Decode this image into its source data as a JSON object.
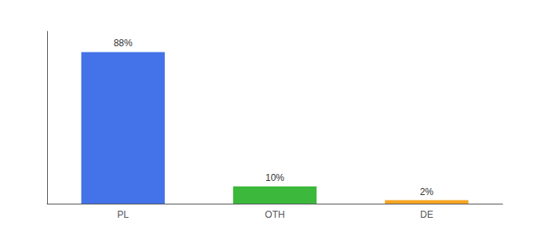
{
  "chart_data": {
    "type": "bar",
    "categories": [
      "PL",
      "OTH",
      "DE"
    ],
    "values": [
      88,
      10,
      2
    ],
    "value_labels": [
      "88%",
      "10%",
      "2%"
    ],
    "colors": [
      "#4472e8",
      "#3cb83c",
      "#f5a623"
    ],
    "data_labels": true,
    "ylim": [
      0,
      100
    ],
    "grid": false,
    "tick_labels": "x"
  }
}
